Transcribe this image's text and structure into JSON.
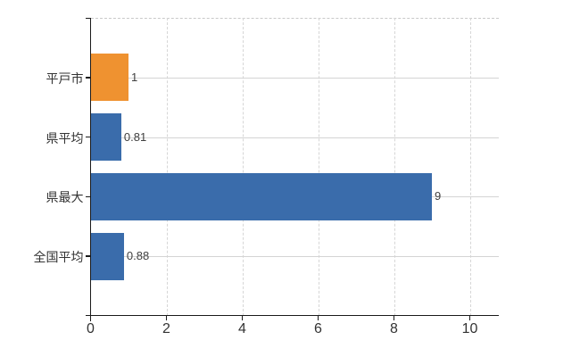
{
  "chart_data": {
    "type": "bar",
    "orientation": "horizontal",
    "title": "",
    "categories": [
      "平戸市",
      "県平均",
      "県最大",
      "全国平均"
    ],
    "values": [
      1,
      0.81,
      9,
      0.88
    ],
    "value_labels": [
      "1",
      "0.81",
      "9",
      "0.88"
    ],
    "bar_colors": [
      "#ef9230",
      "#3a6cab",
      "#3a6cab",
      "#3a6cab"
    ],
    "x_ticks": [
      0,
      2,
      4,
      6,
      8,
      10
    ],
    "x_tick_labels": [
      "0",
      "2",
      "4",
      "6",
      "8",
      "10"
    ],
    "xlim": [
      0,
      10.77
    ],
    "grid": "on",
    "legend": "none"
  },
  "colors": {
    "bar_blue": "#3a6cab",
    "bar_orange": "#ef9230",
    "axis": "#1a1a1a",
    "vertical_gridline": "#d6d6d6",
    "horizontal_gridline": "#d4d4d4",
    "plot_top_border": "#c9c9c9",
    "category_text": "#333333",
    "value_text": "#404040",
    "tick_text": "#333333",
    "background": "#ffffff"
  }
}
